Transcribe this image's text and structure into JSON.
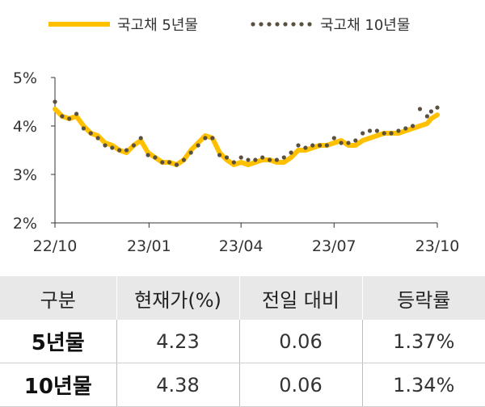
{
  "chart_data": {
    "type": "line",
    "title": "",
    "xlabel": "",
    "ylabel": "",
    "ylim": [
      2,
      5
    ],
    "yticks": [
      "2%",
      "3%",
      "4%",
      "5%"
    ],
    "ytick_values": [
      2,
      3,
      4,
      5
    ],
    "x_range": [
      "2022-10-01",
      "2023-10-10"
    ],
    "xticks": [
      "22/10",
      "23/01",
      "23/04",
      "23/07",
      "23/10"
    ],
    "xtick_dates": [
      "2022-10-01",
      "2023-01-01",
      "2023-04-01",
      "2023-07-01",
      "2023-10-10"
    ],
    "grid": false,
    "legend_position": "top",
    "series": [
      {
        "name": "국고채 5년물",
        "style": "line",
        "color": "#FFC000",
        "points": [
          [
            "2022-10-01",
            4.35
          ],
          [
            "2022-10-08",
            4.2
          ],
          [
            "2022-10-15",
            4.15
          ],
          [
            "2022-10-22",
            4.2
          ],
          [
            "2022-10-29",
            4.0
          ],
          [
            "2022-11-05",
            3.85
          ],
          [
            "2022-11-12",
            3.8
          ],
          [
            "2022-11-19",
            3.65
          ],
          [
            "2022-11-26",
            3.6
          ],
          [
            "2022-12-03",
            3.5
          ],
          [
            "2022-12-10",
            3.45
          ],
          [
            "2022-12-17",
            3.6
          ],
          [
            "2022-12-24",
            3.7
          ],
          [
            "2022-12-31",
            3.45
          ],
          [
            "2023-01-07",
            3.35
          ],
          [
            "2023-01-14",
            3.25
          ],
          [
            "2023-01-21",
            3.25
          ],
          [
            "2023-01-28",
            3.2
          ],
          [
            "2023-02-04",
            3.3
          ],
          [
            "2023-02-11",
            3.5
          ],
          [
            "2023-02-18",
            3.65
          ],
          [
            "2023-02-25",
            3.8
          ],
          [
            "2023-03-04",
            3.75
          ],
          [
            "2023-03-11",
            3.45
          ],
          [
            "2023-03-18",
            3.3
          ],
          [
            "2023-03-25",
            3.2
          ],
          [
            "2023-04-01",
            3.25
          ],
          [
            "2023-04-08",
            3.2
          ],
          [
            "2023-04-15",
            3.25
          ],
          [
            "2023-04-22",
            3.3
          ],
          [
            "2023-04-29",
            3.3
          ],
          [
            "2023-05-06",
            3.25
          ],
          [
            "2023-05-13",
            3.25
          ],
          [
            "2023-05-20",
            3.35
          ],
          [
            "2023-05-27",
            3.5
          ],
          [
            "2023-06-03",
            3.5
          ],
          [
            "2023-06-10",
            3.55
          ],
          [
            "2023-06-17",
            3.6
          ],
          [
            "2023-06-24",
            3.6
          ],
          [
            "2023-07-01",
            3.65
          ],
          [
            "2023-07-08",
            3.7
          ],
          [
            "2023-07-15",
            3.6
          ],
          [
            "2023-07-22",
            3.6
          ],
          [
            "2023-07-29",
            3.7
          ],
          [
            "2023-08-05",
            3.75
          ],
          [
            "2023-08-12",
            3.8
          ],
          [
            "2023-08-19",
            3.85
          ],
          [
            "2023-08-26",
            3.85
          ],
          [
            "2023-09-02",
            3.85
          ],
          [
            "2023-09-09",
            3.9
          ],
          [
            "2023-09-16",
            3.95
          ],
          [
            "2023-09-23",
            4.0
          ],
          [
            "2023-09-30",
            4.05
          ],
          [
            "2023-10-04",
            4.15
          ],
          [
            "2023-10-10",
            4.23
          ]
        ]
      },
      {
        "name": "국고채 10년물",
        "style": "dotted",
        "color": "#5a5040",
        "points": [
          [
            "2022-10-01",
            4.5
          ],
          [
            "2022-10-08",
            4.2
          ],
          [
            "2022-10-15",
            4.15
          ],
          [
            "2022-10-22",
            4.25
          ],
          [
            "2022-10-29",
            3.95
          ],
          [
            "2022-11-05",
            3.85
          ],
          [
            "2022-11-12",
            3.75
          ],
          [
            "2022-11-19",
            3.6
          ],
          [
            "2022-11-26",
            3.55
          ],
          [
            "2022-12-03",
            3.5
          ],
          [
            "2022-12-10",
            3.5
          ],
          [
            "2022-12-17",
            3.6
          ],
          [
            "2022-12-24",
            3.75
          ],
          [
            "2022-12-31",
            3.4
          ],
          [
            "2023-01-07",
            3.35
          ],
          [
            "2023-01-14",
            3.25
          ],
          [
            "2023-01-21",
            3.25
          ],
          [
            "2023-01-28",
            3.2
          ],
          [
            "2023-02-04",
            3.3
          ],
          [
            "2023-02-11",
            3.45
          ],
          [
            "2023-02-18",
            3.6
          ],
          [
            "2023-02-25",
            3.75
          ],
          [
            "2023-03-04",
            3.75
          ],
          [
            "2023-03-11",
            3.4
          ],
          [
            "2023-03-18",
            3.35
          ],
          [
            "2023-03-25",
            3.25
          ],
          [
            "2023-04-01",
            3.35
          ],
          [
            "2023-04-08",
            3.3
          ],
          [
            "2023-04-15",
            3.3
          ],
          [
            "2023-04-22",
            3.35
          ],
          [
            "2023-04-29",
            3.3
          ],
          [
            "2023-05-06",
            3.3
          ],
          [
            "2023-05-13",
            3.35
          ],
          [
            "2023-05-20",
            3.45
          ],
          [
            "2023-05-27",
            3.6
          ],
          [
            "2023-06-03",
            3.55
          ],
          [
            "2023-06-10",
            3.6
          ],
          [
            "2023-06-17",
            3.6
          ],
          [
            "2023-06-24",
            3.6
          ],
          [
            "2023-07-01",
            3.75
          ],
          [
            "2023-07-08",
            3.65
          ],
          [
            "2023-07-15",
            3.65
          ],
          [
            "2023-07-22",
            3.7
          ],
          [
            "2023-07-29",
            3.85
          ],
          [
            "2023-08-05",
            3.9
          ],
          [
            "2023-08-12",
            3.9
          ],
          [
            "2023-08-19",
            3.85
          ],
          [
            "2023-08-26",
            3.85
          ],
          [
            "2023-09-02",
            3.9
          ],
          [
            "2023-09-09",
            3.95
          ],
          [
            "2023-09-16",
            4.0
          ],
          [
            "2023-09-23",
            4.35
          ],
          [
            "2023-09-30",
            4.2
          ],
          [
            "2023-10-04",
            4.3
          ],
          [
            "2023-10-10",
            4.38
          ]
        ]
      }
    ]
  },
  "table": {
    "headers": [
      "구분",
      "현재가(%)",
      "전일 대비",
      "등락률"
    ],
    "rows": [
      [
        "5년물",
        "4.23",
        "0.06",
        "1.37%"
      ],
      [
        "10년물",
        "4.38",
        "0.06",
        "1.34%"
      ]
    ]
  }
}
